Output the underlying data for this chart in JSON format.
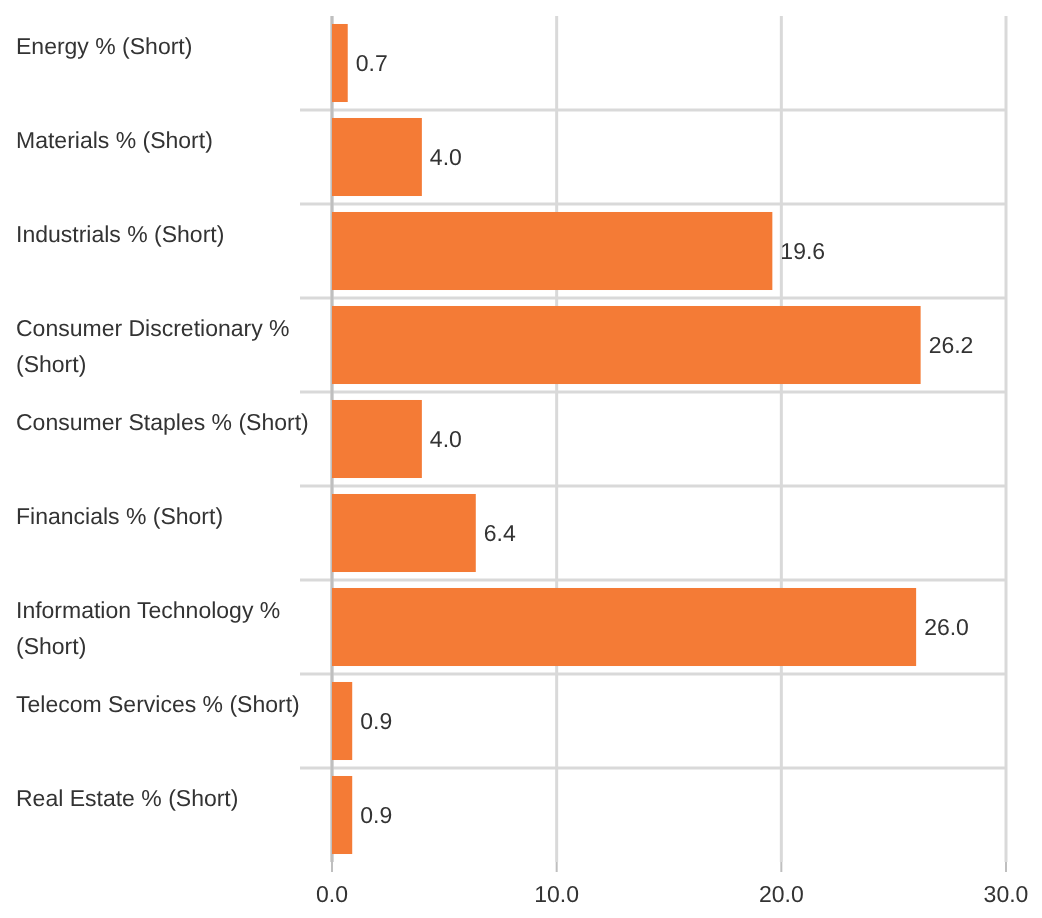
{
  "chart_data": {
    "type": "bar",
    "orientation": "horizontal",
    "categories": [
      "Energy % (Short)",
      "Materials % (Short)",
      "Industrials % (Short)",
      "Consumer Discretionary % (Short)",
      "Consumer Staples % (Short)",
      "Financials % (Short)",
      "Information Technology % (Short)",
      "Telecom Services % (Short)",
      "Real Estate % (Short)"
    ],
    "values": [
      0.7,
      4.0,
      19.6,
      26.2,
      4.0,
      6.4,
      26.0,
      0.9,
      0.9
    ],
    "value_labels": [
      "0.7",
      "4.0",
      "19.6",
      "26.2",
      "4.0",
      "6.4",
      "26.0",
      "0.9",
      "0.9"
    ],
    "color": "#f47b36",
    "xlim": [
      0,
      30
    ],
    "xticks": [
      {
        "value": 0,
        "label": "0.0"
      },
      {
        "value": 10,
        "label": "10.0"
      },
      {
        "value": 20,
        "label": "20.0"
      },
      {
        "value": 30,
        "label": "30.0"
      }
    ],
    "grid": "x"
  }
}
